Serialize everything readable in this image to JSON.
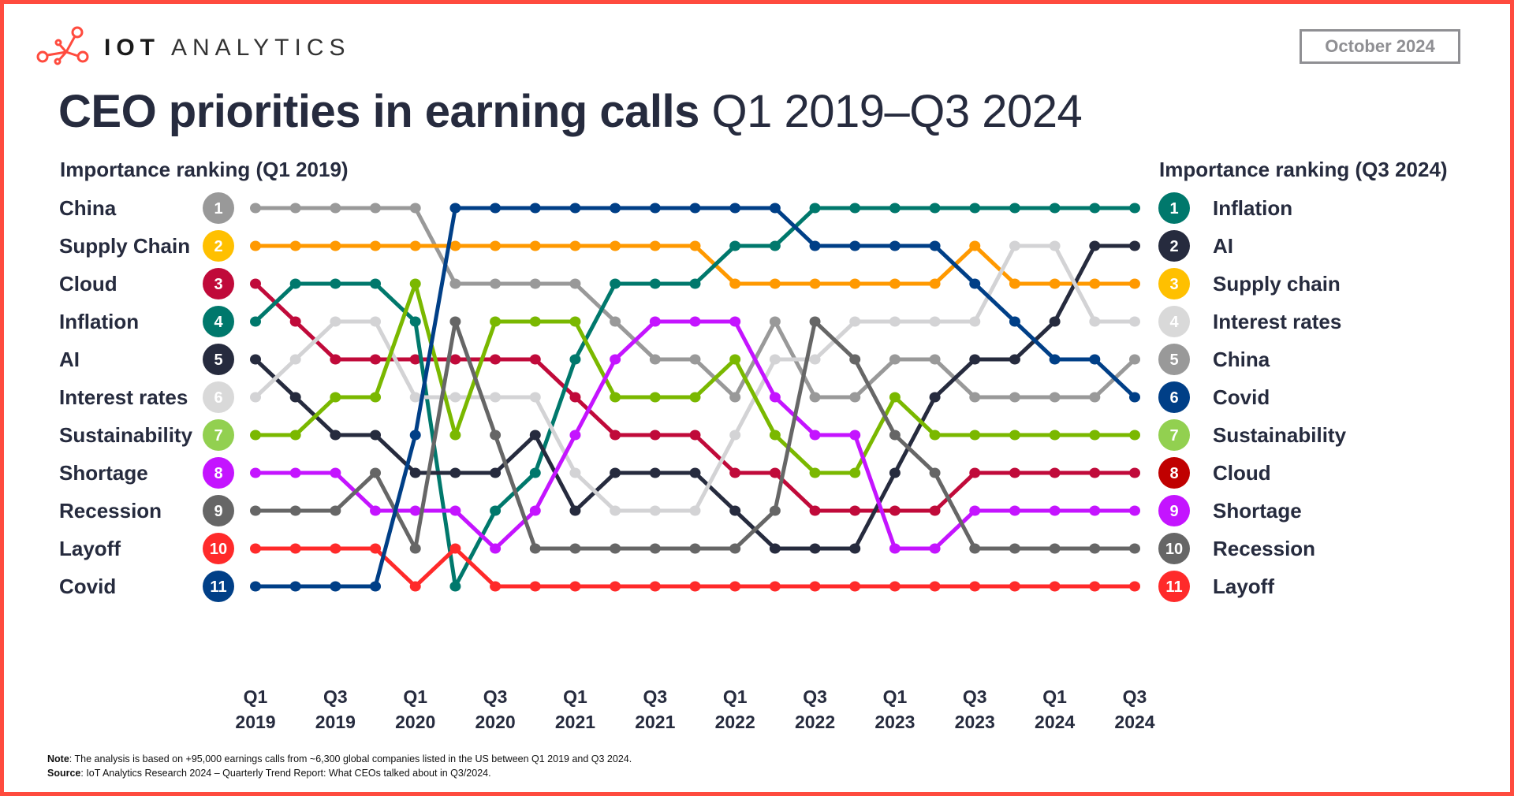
{
  "brand": {
    "strong": "IOT",
    "light": "ANALYTICS",
    "logo_icon": "network-nodes-icon",
    "color": "#FF4B3E"
  },
  "date": "October 2024",
  "title": {
    "bold": "CEO priorities in earning calls",
    "regular": "Q1 2019–Q3 2024"
  },
  "left_header": "Importance ranking (Q1 2019)",
  "right_header": "Importance ranking (Q3 2024)",
  "footer": {
    "note_label": "Note",
    "note": ": The analysis is based on +95,000 earnings calls from ~6,300 global companies listed in the US between Q1 2019 and Q3 2024.",
    "source_label": "Source",
    "source": ": IoT Analytics Research 2024 – Quarterly Trend Report: What CEOs talked about in Q3/2024."
  },
  "chart_data": {
    "type": "line",
    "subtype": "bump",
    "y_axis": "rank (1 = top)",
    "ylim": [
      1,
      11
    ],
    "grid": false,
    "x": [
      "Q1 2019",
      "Q2 2019",
      "Q3 2019",
      "Q4 2019",
      "Q1 2020",
      "Q2 2020",
      "Q3 2020",
      "Q4 2020",
      "Q1 2021",
      "Q2 2021",
      "Q3 2021",
      "Q4 2021",
      "Q1 2022",
      "Q2 2022",
      "Q3 2022",
      "Q4 2022",
      "Q1 2023",
      "Q2 2023",
      "Q3 2023",
      "Q4 2023",
      "Q1 2024",
      "Q2 2024",
      "Q3 2024"
    ],
    "x_tick_labels": [
      {
        "q": "Q1",
        "y": "2019"
      },
      {
        "q": "Q3",
        "y": "2019"
      },
      {
        "q": "Q1",
        "y": "2020"
      },
      {
        "q": "Q3",
        "y": "2020"
      },
      {
        "q": "Q1",
        "y": "2021"
      },
      {
        "q": "Q3",
        "y": "2021"
      },
      {
        "q": "Q1",
        "y": "2022"
      },
      {
        "q": "Q3",
        "y": "2022"
      },
      {
        "q": "Q1",
        "y": "2023"
      },
      {
        "q": "Q3",
        "y": "2023"
      },
      {
        "q": "Q1",
        "y": "2024"
      },
      {
        "q": "Q3",
        "y": "2024"
      }
    ],
    "series": [
      {
        "name": "China",
        "color": "#999999",
        "badge": "#999999",
        "values": [
          1,
          1,
          1,
          1,
          1,
          3,
          3,
          3,
          3,
          4,
          5,
          5,
          6,
          4,
          6,
          6,
          5,
          5,
          6,
          6,
          6,
          6,
          5
        ]
      },
      {
        "name": "Supply Chain",
        "color": "#FF9900",
        "badge": "#FFC000",
        "values": [
          2,
          2,
          2,
          2,
          2,
          2,
          2,
          2,
          2,
          2,
          2,
          2,
          3,
          3,
          3,
          3,
          3,
          3,
          2,
          3,
          3,
          3,
          3
        ]
      },
      {
        "name": "Cloud",
        "color": "#C00A3A",
        "badge": "#C00A3A",
        "values": [
          3,
          4,
          5,
          5,
          5,
          5,
          5,
          5,
          6,
          7,
          7,
          7,
          8,
          8,
          9,
          9,
          9,
          9,
          8,
          8,
          8,
          8,
          8
        ]
      },
      {
        "name": "Inflation",
        "color": "#00786C",
        "badge": "#00786C",
        "values": [
          4,
          3,
          3,
          3,
          4,
          11,
          9,
          8,
          5,
          3,
          3,
          3,
          2,
          2,
          1,
          1,
          1,
          1,
          1,
          1,
          1,
          1,
          1
        ]
      },
      {
        "name": "AI",
        "color": "#262B3E",
        "badge": "#262B3E",
        "values": [
          5,
          6,
          7,
          7,
          8,
          8,
          8,
          7,
          9,
          8,
          8,
          8,
          9,
          10,
          10,
          10,
          8,
          6,
          5,
          5,
          4,
          2,
          2
        ]
      },
      {
        "name": "Interest rates",
        "color": "#D3D3D5",
        "badge": "#D9D9D9",
        "values": [
          6,
          5,
          4,
          4,
          6,
          6,
          6,
          6,
          8,
          9,
          9,
          9,
          7,
          5,
          5,
          4,
          4,
          4,
          4,
          2,
          2,
          4,
          4
        ]
      },
      {
        "name": "Sustainability",
        "color": "#7AB800",
        "badge": "#92D050",
        "values": [
          7,
          7,
          6,
          6,
          3,
          7,
          4,
          4,
          4,
          6,
          6,
          6,
          5,
          7,
          8,
          8,
          6,
          7,
          7,
          7,
          7,
          7,
          7
        ]
      },
      {
        "name": "Shortage",
        "color": "#C414FF",
        "badge": "#C414FF",
        "values": [
          8,
          8,
          8,
          9,
          9,
          9,
          10,
          9,
          7,
          5,
          4,
          4,
          4,
          6,
          7,
          7,
          10,
          10,
          9,
          9,
          9,
          9,
          9
        ]
      },
      {
        "name": "Recession",
        "color": "#666666",
        "badge": "#666666",
        "values": [
          9,
          9,
          9,
          8,
          10,
          4,
          7,
          10,
          10,
          10,
          10,
          10,
          10,
          9,
          4,
          5,
          7,
          8,
          10,
          10,
          10,
          10,
          10
        ]
      },
      {
        "name": "Layoff",
        "color": "#FF2A2A",
        "badge": "#FF2A2A",
        "values": [
          10,
          10,
          10,
          10,
          11,
          10,
          11,
          11,
          11,
          11,
          11,
          11,
          11,
          11,
          11,
          11,
          11,
          11,
          11,
          11,
          11,
          11,
          11
        ]
      },
      {
        "name": "Covid",
        "color": "#003F87",
        "badge": "#003F87",
        "values": [
          11,
          11,
          11,
          11,
          7,
          1,
          1,
          1,
          1,
          1,
          1,
          1,
          1,
          1,
          2,
          2,
          2,
          2,
          3,
          4,
          5,
          5,
          6
        ]
      }
    ],
    "left_ranking": [
      {
        "rank": "1",
        "label": "China",
        "badge": "#999999"
      },
      {
        "rank": "2",
        "label": "Supply Chain",
        "badge": "#FFC000"
      },
      {
        "rank": "3",
        "label": "Cloud",
        "badge": "#C00A3A"
      },
      {
        "rank": "4",
        "label": "Inflation",
        "badge": "#00786C"
      },
      {
        "rank": "5",
        "label": "AI",
        "badge": "#262B3E"
      },
      {
        "rank": "6",
        "label": "Interest rates",
        "badge": "#D9D9D9"
      },
      {
        "rank": "7",
        "label": "Sustainability",
        "badge": "#92D050"
      },
      {
        "rank": "8",
        "label": "Shortage",
        "badge": "#C414FF"
      },
      {
        "rank": "9",
        "label": "Recession",
        "badge": "#666666"
      },
      {
        "rank": "10",
        "label": "Layoff",
        "badge": "#FF2A2A"
      },
      {
        "rank": "11",
        "label": "Covid",
        "badge": "#003F87"
      }
    ],
    "right_ranking": [
      {
        "rank": "1",
        "label": "Inflation",
        "badge": "#00786C"
      },
      {
        "rank": "2",
        "label": "AI",
        "badge": "#262B3E"
      },
      {
        "rank": "3",
        "label": "Supply chain",
        "badge": "#FFC000"
      },
      {
        "rank": "4",
        "label": "Interest rates",
        "badge": "#D9D9D9"
      },
      {
        "rank": "5",
        "label": "China",
        "badge": "#999999"
      },
      {
        "rank": "6",
        "label": "Covid",
        "badge": "#003F87"
      },
      {
        "rank": "7",
        "label": "Sustainability",
        "badge": "#92D050"
      },
      {
        "rank": "8",
        "label": "Cloud",
        "badge": "#C00000"
      },
      {
        "rank": "9",
        "label": "Shortage",
        "badge": "#C414FF"
      },
      {
        "rank": "10",
        "label": "Recession",
        "badge": "#666666"
      },
      {
        "rank": "11",
        "label": "Layoff",
        "badge": "#FF2A2A"
      }
    ]
  }
}
